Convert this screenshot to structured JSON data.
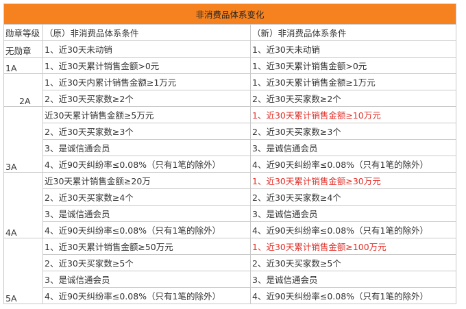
{
  "table": {
    "title": "非消费品体系变化",
    "header": [
      "勋章等级",
      "（原）非消费品体系条件",
      "（新）非消费品体系条件"
    ],
    "groups": [
      {
        "level": "无勋章",
        "rows": [
          [
            "1、近30天未动销",
            "1、近30天未动销"
          ]
        ]
      },
      {
        "level": "1A",
        "rows": [
          [
            "1、近30天累计销售金额>0元",
            "1、近30天累计销售金额>0元"
          ]
        ]
      },
      {
        "level": "2A",
        "rows": [
          [
            "1、近30天内累计销售金额≥1万元",
            "1、近30天累计销售金额≥1万元"
          ],
          [
            "2、近30天买家数≥2个",
            "2、近30天买家数≥2个"
          ]
        ]
      },
      {
        "level": "3A",
        "rows": [
          [
            "近30天累计销售金额≥5万元",
            "1、近30天累计销售金额≥10万元"
          ],
          [
            "2、近30天买家数≥3个",
            "2、近30天买家数≥3个"
          ],
          [
            "3、是诚信通会员",
            "3、是诚信通会员"
          ],
          [
            "4、近90天纠纷率≤0.08%（只有1笔的除外）",
            "4、近90天纠纷率≤0.08%（只有1笔的除外）"
          ]
        ]
      },
      {
        "level": "4A",
        "rows": [
          [
            "近30天累计销售金额≥20万",
            "1、近30天累计销售金额≥30万元"
          ],
          [
            "2、近30天买家数≥4个",
            "2、近30天买家数≥4个"
          ],
          [
            "3、是诚信通会员",
            "3、是诚信通会员"
          ],
          [
            "4、近90天纠纷率≤0.08%（只有1笔的除外）",
            "4、近90天纠纷率≤0.08%（只有1笔的除外）"
          ]
        ]
      },
      {
        "level": "5A",
        "rows": [
          [
            "1、近30天累计销售金额≥50万元",
            "1、近30天累计销售金额≥100万元"
          ],
          [
            "2、近30天买家数≥5个",
            "2、近30天买家数≥5个"
          ],
          [
            "3、是诚信通会员",
            "3、是诚信通会员"
          ],
          [
            "4、近90天纠纷率≤0.08%（只有1笔的除外）",
            "4、近90天纠纷率≤0.08%（只有1笔的除外）"
          ]
        ]
      }
    ]
  }
}
